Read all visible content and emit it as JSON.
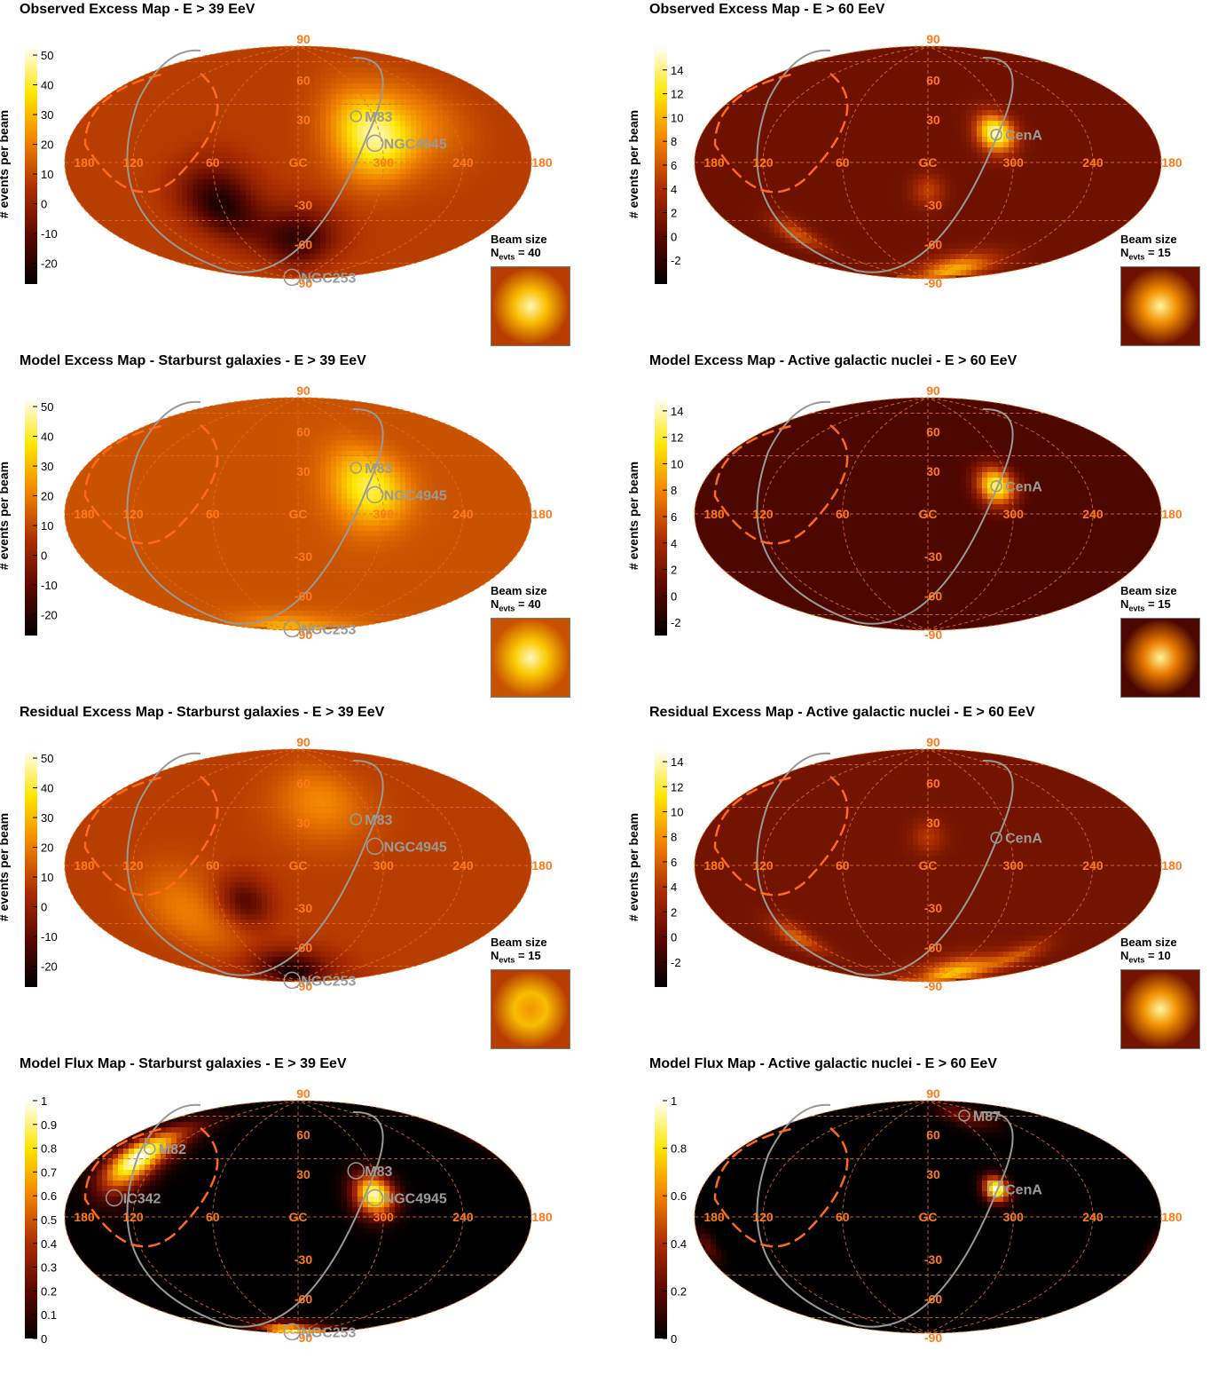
{
  "chart_data": [
    {
      "type": "heatmap",
      "title": "Observed Excess Map - E > 39 EeV",
      "ylabel": "# events per beam",
      "colorbar_ticks": [
        -20,
        -10,
        0,
        10,
        20,
        30,
        40,
        50
      ],
      "colorbar_range": [
        -27,
        53
      ],
      "projection": "Hammer-Aitoff galactic",
      "lon_ticks": [
        "180",
        "120",
        "60",
        "GC",
        "300",
        "240",
        "180"
      ],
      "lat_ticks": [
        "90",
        "60",
        "30",
        "-30",
        "-60",
        "-90"
      ],
      "sources": [
        {
          "name": "M83",
          "lon": 314,
          "lat": 32
        },
        {
          "name": "NGC4945",
          "lon": 305,
          "lat": 13
        },
        {
          "name": "NGC253",
          "lon": 97,
          "lat": -88
        }
      ],
      "hotspots": [
        {
          "lon": 305,
          "lat": 18,
          "value": 46,
          "sigma": 20
        },
        {
          "lon": 260,
          "lat": 30,
          "value": 18,
          "sigma": 22
        },
        {
          "lon": 60,
          "lat": -28,
          "value": -22,
          "sigma": 18
        },
        {
          "lon": 0,
          "lat": -55,
          "value": -18,
          "sigma": 16
        }
      ],
      "baseline": 8,
      "beam_size_label": "Beam size",
      "n_evts_label": "N",
      "n_evts_sub": "evts",
      "n_evts_value": "= 40"
    },
    {
      "type": "heatmap",
      "title": "Observed Excess Map - E > 60 EeV",
      "ylabel": "# events per beam",
      "colorbar_ticks": [
        -2,
        0,
        2,
        4,
        6,
        8,
        10,
        12,
        14
      ],
      "colorbar_range": [
        -4,
        16
      ],
      "projection": "Hammer-Aitoff galactic",
      "lon_ticks": [
        "180",
        "120",
        "60",
        "GC",
        "300",
        "240",
        "180"
      ],
      "lat_ticks": [
        "90",
        "60",
        "30",
        "-30",
        "-60",
        "-90"
      ],
      "sources": [
        {
          "name": "CenA",
          "lon": 310,
          "lat": 19
        }
      ],
      "hotspots": [
        {
          "lon": 310,
          "lat": 20,
          "value": 15,
          "sigma": 9
        },
        {
          "lon": 280,
          "lat": -80,
          "value": 10,
          "sigma": 10
        },
        {
          "lon": 130,
          "lat": -45,
          "value": 6,
          "sigma": 8
        },
        {
          "lon": 0,
          "lat": -20,
          "value": 5,
          "sigma": 8
        }
      ],
      "baseline": 1,
      "beam_size_label": "Beam size",
      "n_evts_label": "N",
      "n_evts_sub": "evts",
      "n_evts_value": "= 15"
    },
    {
      "type": "heatmap",
      "title": "Model Excess Map - Starburst galaxies - E > 39 EeV",
      "ylabel": "# events per beam",
      "colorbar_ticks": [
        -20,
        -10,
        0,
        10,
        20,
        30,
        40,
        50
      ],
      "colorbar_range": [
        -27,
        53
      ],
      "projection": "Hammer-Aitoff galactic",
      "lon_ticks": [
        "180",
        "120",
        "60",
        "GC",
        "300",
        "240",
        "180"
      ],
      "lat_ticks": [
        "90",
        "60",
        "30",
        "-30",
        "-60",
        "-90"
      ],
      "sources": [
        {
          "name": "M83",
          "lon": 314,
          "lat": 32
        },
        {
          "name": "NGC4945",
          "lon": 305,
          "lat": 13
        },
        {
          "name": "NGC253",
          "lon": 97,
          "lat": -88
        }
      ],
      "hotspots": [
        {
          "lon": 308,
          "lat": 18,
          "value": 42,
          "sigma": 18
        },
        {
          "lon": 97,
          "lat": -88,
          "value": 30,
          "sigma": 10
        }
      ],
      "baseline": 12,
      "beam_size_label": "Beam size",
      "n_evts_label": "N",
      "n_evts_sub": "evts",
      "n_evts_value": "= 40"
    },
    {
      "type": "heatmap",
      "title": "Model Excess Map - Active galactic nuclei - E > 60 EeV",
      "ylabel": "# events per beam",
      "colorbar_ticks": [
        -2,
        0,
        2,
        4,
        6,
        8,
        10,
        12,
        14
      ],
      "colorbar_range": [
        -3,
        15
      ],
      "projection": "Hammer-Aitoff galactic",
      "lon_ticks": [
        "180",
        "120",
        "60",
        "GC",
        "300",
        "240",
        "180"
      ],
      "lat_ticks": [
        "90",
        "60",
        "30",
        "-30",
        "-60",
        "-90"
      ],
      "sources": [
        {
          "name": "CenA",
          "lon": 310,
          "lat": 19
        }
      ],
      "hotspots": [
        {
          "lon": 310,
          "lat": 19,
          "value": 13,
          "sigma": 9
        }
      ],
      "baseline": 0,
      "beam_size_label": "Beam size",
      "n_evts_label": "N",
      "n_evts_sub": "evts",
      "n_evts_value": "= 15"
    },
    {
      "type": "heatmap",
      "title": "Residual Excess Map - Starburst galaxies - E > 39 EeV",
      "ylabel": "# events per beam",
      "colorbar_ticks": [
        -20,
        -10,
        0,
        10,
        20,
        30,
        40,
        50
      ],
      "colorbar_range": [
        -27,
        53
      ],
      "projection": "Hammer-Aitoff galactic",
      "lon_ticks": [
        "180",
        "120",
        "60",
        "GC",
        "300",
        "240",
        "180"
      ],
      "lat_ticks": [
        "90",
        "60",
        "30",
        "-30",
        "-60",
        "-90"
      ],
      "sources": [
        {
          "name": "M83",
          "lon": 314,
          "lat": 32
        },
        {
          "name": "NGC4945",
          "lon": 305,
          "lat": 13
        },
        {
          "name": "NGC253",
          "lon": 97,
          "lat": -88
        }
      ],
      "hotspots": [
        {
          "lon": 340,
          "lat": 45,
          "value": 22,
          "sigma": 20
        },
        {
          "lon": 90,
          "lat": -30,
          "value": 20,
          "sigma": 20
        },
        {
          "lon": 20,
          "lat": -80,
          "value": -24,
          "sigma": 12
        },
        {
          "lon": 40,
          "lat": -25,
          "value": -12,
          "sigma": 12
        }
      ],
      "baseline": 8,
      "beam_size_label": "Beam size",
      "n_evts_label": "N",
      "n_evts_sub": "evts",
      "n_evts_value": "= 15"
    },
    {
      "type": "heatmap",
      "title": "Residual Excess Map - Active galactic nuclei - E > 60 EeV",
      "ylabel": "# events per beam",
      "colorbar_ticks": [
        -2,
        0,
        2,
        4,
        6,
        8,
        10,
        12,
        14
      ],
      "colorbar_range": [
        -4,
        15
      ],
      "projection": "Hammer-Aitoff galactic",
      "lon_ticks": [
        "180",
        "120",
        "60",
        "GC",
        "300",
        "240",
        "180"
      ],
      "lat_ticks": [
        "90",
        "60",
        "30",
        "-30",
        "-60",
        "-90"
      ],
      "sources": [
        {
          "name": "CenA",
          "lon": 310,
          "lat": 19
        }
      ],
      "hotspots": [
        {
          "lon": 280,
          "lat": -80,
          "value": 10,
          "sigma": 10
        },
        {
          "lon": 130,
          "lat": -45,
          "value": 6,
          "sigma": 8
        },
        {
          "lon": 240,
          "lat": -60,
          "value": 5,
          "sigma": 8
        },
        {
          "lon": 0,
          "lat": 20,
          "value": 4,
          "sigma": 8
        }
      ],
      "baseline": 1,
      "beam_size_label": "Beam size",
      "n_evts_label": "N",
      "n_evts_sub": "evts",
      "n_evts_value": "= 10"
    },
    {
      "type": "heatmap",
      "title": "Model Flux Map - Starburst galaxies - E > 39 EeV",
      "ylabel": "",
      "colorbar_ticks": [
        0,
        0.1,
        0.2,
        0.3,
        0.4,
        0.5,
        0.6,
        0.7,
        0.8,
        0.9,
        1
      ],
      "colorbar_range": [
        0,
        1
      ],
      "projection": "Hammer-Aitoff galactic",
      "lon_ticks": [
        "180",
        "120",
        "60",
        "GC",
        "300",
        "240",
        "180"
      ],
      "lat_ticks": [
        "90",
        "60",
        "30",
        "-30",
        "-60",
        "-90"
      ],
      "sources": [
        {
          "name": "M82",
          "lon": 141,
          "lat": 41
        },
        {
          "name": "IC342",
          "lon": 138,
          "lat": 11
        },
        {
          "name": "M83",
          "lon": 314,
          "lat": 32
        },
        {
          "name": "NGC4945",
          "lon": 305,
          "lat": 13
        },
        {
          "name": "NGC253",
          "lon": 97,
          "lat": -88
        }
      ],
      "hotspots": [
        {
          "lon": 141,
          "lat": 35,
          "value": 1.0,
          "sigma": 14
        },
        {
          "lon": 305,
          "lat": 15,
          "value": 0.95,
          "sigma": 10
        },
        {
          "lon": 97,
          "lat": -88,
          "value": 0.95,
          "sigma": 6
        }
      ],
      "baseline": 0,
      "beam_size_label": "",
      "n_evts_label": "",
      "n_evts_sub": "",
      "n_evts_value": ""
    },
    {
      "type": "heatmap",
      "title": "Model Flux Map - Active galactic nuclei - E > 60 EeV",
      "ylabel": "",
      "colorbar_ticks": [
        0,
        0.2,
        0.4,
        0.6,
        0.8,
        1
      ],
      "colorbar_range": [
        0,
        1
      ],
      "projection": "Hammer-Aitoff galactic",
      "lon_ticks": [
        "180",
        "120",
        "60",
        "GC",
        "300",
        "240",
        "180"
      ],
      "lat_ticks": [
        "90",
        "60",
        "30",
        "-30",
        "-60",
        "-90"
      ],
      "sources": [
        {
          "name": "M87",
          "lon": 283,
          "lat": 74
        },
        {
          "name": "CenA",
          "lon": 310,
          "lat": 19
        }
      ],
      "hotspots": [
        {
          "lon": 310,
          "lat": 19,
          "value": 1.0,
          "sigma": 6
        },
        {
          "lon": 283,
          "lat": 74,
          "value": 0.25,
          "sigma": 8
        },
        {
          "lon": 175,
          "lat": -15,
          "value": 0.2,
          "sigma": 6
        }
      ],
      "baseline": 0,
      "beam_size_label": "",
      "n_evts_label": "",
      "n_evts_sub": "",
      "n_evts_value": ""
    }
  ]
}
